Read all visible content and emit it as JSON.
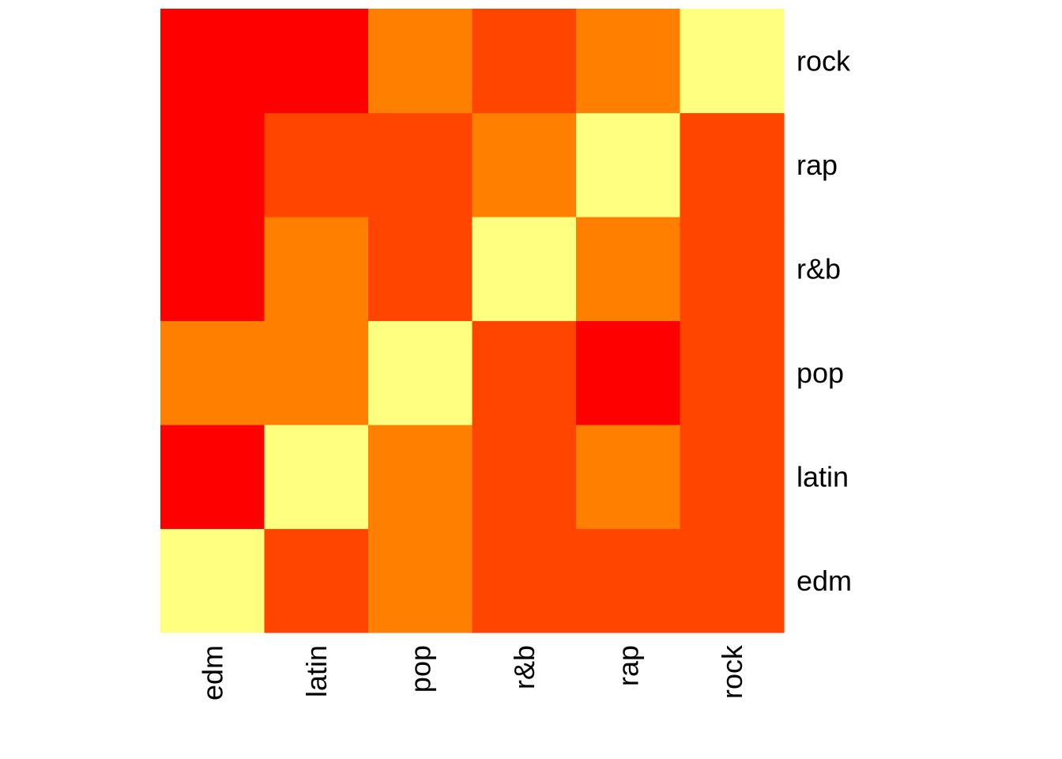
{
  "chart_data": {
    "type": "heatmap",
    "x_labels": [
      "edm",
      "latin",
      "pop",
      "r&b",
      "rap",
      "rock"
    ],
    "y_labels": [
      "edm",
      "latin",
      "pop",
      "r&b",
      "rap",
      "rock"
    ],
    "values": [
      [
        4,
        2,
        3,
        2,
        2,
        2
      ],
      [
        1,
        4,
        3,
        2,
        3,
        2
      ],
      [
        3,
        3,
        4,
        2,
        1,
        2
      ],
      [
        1,
        3,
        2,
        4,
        3,
        2
      ],
      [
        1,
        2,
        2,
        3,
        4,
        2
      ],
      [
        1,
        1,
        3,
        2,
        3,
        4
      ]
    ],
    "palette": {
      "1": "#FF0000",
      "2": "#FF4500",
      "3": "#FF8000",
      "4": "#FFFF80"
    },
    "legend": "none"
  }
}
